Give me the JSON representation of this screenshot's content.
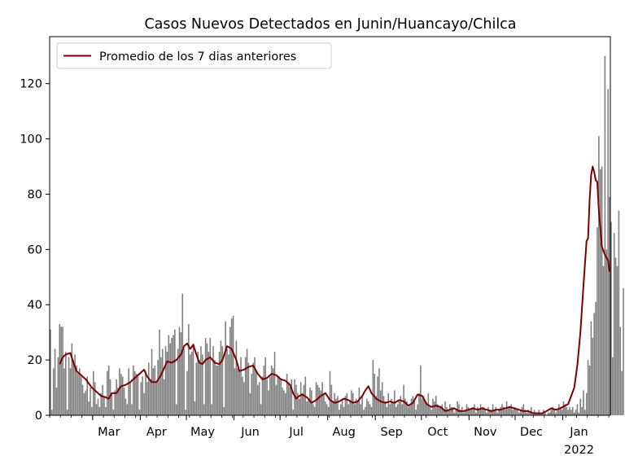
{
  "chart_data": {
    "type": "bar",
    "title": "Casos Nuevos Detectados en Junin/Huancayo/Chilca",
    "xlabel": "",
    "ylabel": "",
    "x_range": [
      "2021-02-01",
      "2022-01-31"
    ],
    "ylim": [
      0,
      137
    ],
    "y_ticks": [
      0,
      20,
      40,
      60,
      80,
      100,
      120
    ],
    "x_ticks": [
      {
        "date": "2021-03-01",
        "label": "Mar"
      },
      {
        "date": "2021-04-01",
        "label": "Apr"
      },
      {
        "date": "2021-05-01",
        "label": "May"
      },
      {
        "date": "2021-06-01",
        "label": "Jun"
      },
      {
        "date": "2021-07-01",
        "label": "Jul"
      },
      {
        "date": "2021-08-01",
        "label": "Aug"
      },
      {
        "date": "2021-09-01",
        "label": "Sep"
      },
      {
        "date": "2021-10-01",
        "label": "Oct"
      },
      {
        "date": "2021-11-01",
        "label": "Nov"
      },
      {
        "date": "2021-12-01",
        "label": "Dec"
      },
      {
        "date": "2022-01-01",
        "label": "Jan",
        "sublabel": "2022"
      }
    ],
    "grid": false,
    "legend_position": "top-left",
    "legend_entries": [
      "Promedio de los 7 dias anteriores"
    ],
    "bar_color": "#808080",
    "line_color": "#7f0000",
    "daily_cases": {
      "start_date": "2021-02-01",
      "values": [
        31,
        2,
        17,
        24,
        10,
        21,
        33,
        32,
        32,
        17,
        23,
        2,
        21,
        17,
        26,
        20,
        22,
        18,
        15,
        17,
        14,
        11,
        8,
        9,
        14,
        5,
        10,
        3,
        16,
        12,
        4,
        6,
        3,
        8,
        11,
        7,
        3,
        16,
        18,
        13,
        8,
        2,
        9,
        13,
        10,
        17,
        15,
        14,
        10,
        6,
        4,
        17,
        12,
        4,
        18,
        16,
        15,
        14,
        2,
        12,
        14,
        8,
        16,
        12,
        19,
        13,
        24,
        17,
        18,
        12,
        20,
        31,
        21,
        24,
        13,
        25,
        23,
        29,
        26,
        28,
        29,
        31,
        4,
        24,
        32,
        30,
        44,
        24,
        2,
        16,
        33,
        22,
        23,
        26,
        5,
        19,
        23,
        20,
        25,
        22,
        4,
        28,
        26,
        23,
        28,
        4,
        25,
        20,
        18,
        18,
        23,
        27,
        25,
        3,
        34,
        24,
        22,
        32,
        35,
        36,
        17,
        27,
        17,
        16,
        21,
        14,
        12,
        21,
        24,
        19,
        8,
        15,
        19,
        21,
        16,
        11,
        12,
        4,
        14,
        18,
        21,
        13,
        9,
        14,
        18,
        17,
        23,
        11,
        14,
        14,
        13,
        10,
        9,
        8,
        15,
        12,
        10,
        13,
        2,
        13,
        11,
        8,
        6,
        12,
        8,
        11,
        14,
        5,
        6,
        10,
        9,
        4,
        3,
        12,
        11,
        10,
        9,
        12,
        8,
        5,
        4,
        3,
        16,
        11,
        5,
        8,
        6,
        7,
        2,
        4,
        6,
        3,
        7,
        8,
        4,
        5,
        9,
        8,
        4,
        6,
        5,
        10,
        4,
        7,
        2,
        3,
        6,
        5,
        4,
        3,
        20,
        15,
        7,
        14,
        17,
        9,
        12,
        7,
        5,
        3,
        8,
        4,
        6,
        5,
        9,
        3,
        4,
        5,
        7,
        4,
        11,
        6,
        5,
        3,
        4,
        6,
        7,
        5,
        2,
        4,
        8,
        18,
        6,
        7,
        5,
        4,
        8,
        3,
        2,
        6,
        5,
        7,
        4,
        3,
        3,
        4,
        2,
        5,
        3,
        2,
        4,
        3,
        3,
        1,
        2,
        5,
        4,
        2,
        3,
        1,
        2,
        4,
        3,
        2,
        2,
        3,
        4,
        1,
        3,
        2,
        4,
        3,
        3,
        2,
        1,
        3,
        2,
        2,
        4,
        2,
        3,
        1,
        2,
        3,
        4,
        3,
        2,
        5,
        3,
        3,
        4,
        2,
        3,
        2,
        2,
        1,
        2,
        3,
        4,
        2,
        1,
        2,
        1,
        3,
        1,
        2,
        1,
        1,
        2,
        1,
        1,
        2,
        1,
        0,
        1,
        1,
        2,
        3,
        2,
        1,
        2,
        4,
        3,
        2,
        5,
        4,
        3,
        2,
        3,
        2,
        3,
        1,
        2,
        4,
        1,
        6,
        3,
        9,
        2,
        8,
        20,
        18,
        34,
        28,
        37,
        41,
        68,
        101,
        89,
        90,
        54,
        130,
        60,
        118,
        79,
        70,
        21,
        66,
        57,
        54,
        74,
        32,
        16,
        46
      ]
    },
    "rolling_average_7day": {
      "name": "Promedio de los 7 dias anteriores",
      "points": [
        [
          "2021-02-07",
          18.5
        ],
        [
          "2021-02-09",
          21
        ],
        [
          "2021-02-11",
          22
        ],
        [
          "2021-02-14",
          22.5
        ],
        [
          "2021-02-16",
          19
        ],
        [
          "2021-02-18",
          16
        ],
        [
          "2021-02-21",
          14.5
        ],
        [
          "2021-02-24",
          13
        ],
        [
          "2021-02-26",
          11.5
        ],
        [
          "2021-02-28",
          10
        ],
        [
          "2021-03-03",
          8.5
        ],
        [
          "2021-03-06",
          7
        ],
        [
          "2021-03-09",
          6.5
        ],
        [
          "2021-03-11",
          6
        ],
        [
          "2021-03-13",
          8
        ],
        [
          "2021-03-16",
          8
        ],
        [
          "2021-03-19",
          10.5
        ],
        [
          "2021-03-22",
          11
        ],
        [
          "2021-03-25",
          12
        ],
        [
          "2021-03-28",
          13.5
        ],
        [
          "2021-03-31",
          15
        ],
        [
          "2021-04-03",
          16.5
        ],
        [
          "2021-04-05",
          14
        ],
        [
          "2021-04-08",
          12
        ],
        [
          "2021-04-11",
          12
        ],
        [
          "2021-04-14",
          14.5
        ],
        [
          "2021-04-16",
          17
        ],
        [
          "2021-04-18",
          19.5
        ],
        [
          "2021-04-21",
          19
        ],
        [
          "2021-04-24",
          20
        ],
        [
          "2021-04-27",
          22
        ],
        [
          "2021-04-29",
          25
        ],
        [
          "2021-05-01",
          26
        ],
        [
          "2021-05-03",
          24
        ],
        [
          "2021-05-05",
          25.5
        ],
        [
          "2021-05-07",
          22
        ],
        [
          "2021-05-09",
          19
        ],
        [
          "2021-05-11",
          18.5
        ],
        [
          "2021-05-13",
          20
        ],
        [
          "2021-05-16",
          21
        ],
        [
          "2021-05-19",
          19
        ],
        [
          "2021-05-22",
          18.5
        ],
        [
          "2021-05-24",
          20
        ],
        [
          "2021-05-27",
          25
        ],
        [
          "2021-05-30",
          24
        ],
        [
          "2021-06-02",
          20
        ],
        [
          "2021-06-04",
          16
        ],
        [
          "2021-06-07",
          16.5
        ],
        [
          "2021-06-10",
          17.5
        ],
        [
          "2021-06-13",
          18
        ],
        [
          "2021-06-16",
          15
        ],
        [
          "2021-06-19",
          13
        ],
        [
          "2021-06-22",
          13.5
        ],
        [
          "2021-06-25",
          15
        ],
        [
          "2021-06-28",
          14.5
        ],
        [
          "2021-07-01",
          13
        ],
        [
          "2021-07-04",
          12.5
        ],
        [
          "2021-07-07",
          11
        ],
        [
          "2021-07-09",
          8
        ],
        [
          "2021-07-11",
          6
        ],
        [
          "2021-07-13",
          7
        ],
        [
          "2021-07-15",
          7.5
        ],
        [
          "2021-07-18",
          6.5
        ],
        [
          "2021-07-21",
          4.5
        ],
        [
          "2021-07-24",
          5.5
        ],
        [
          "2021-07-27",
          7
        ],
        [
          "2021-07-30",
          8
        ],
        [
          "2021-08-02",
          5.5
        ],
        [
          "2021-08-05",
          4.5
        ],
        [
          "2021-08-08",
          5
        ],
        [
          "2021-08-11",
          6
        ],
        [
          "2021-08-14",
          5.5
        ],
        [
          "2021-08-17",
          4.5
        ],
        [
          "2021-08-20",
          5
        ],
        [
          "2021-08-23",
          7
        ],
        [
          "2021-08-25",
          9
        ],
        [
          "2021-08-27",
          10.5
        ],
        [
          "2021-08-29",
          8
        ],
        [
          "2021-09-01",
          6
        ],
        [
          "2021-09-04",
          5
        ],
        [
          "2021-09-07",
          4.5
        ],
        [
          "2021-09-10",
          5
        ],
        [
          "2021-09-13",
          4.5
        ],
        [
          "2021-09-16",
          5.5
        ],
        [
          "2021-09-19",
          5
        ],
        [
          "2021-09-22",
          3.5
        ],
        [
          "2021-09-25",
          4.5
        ],
        [
          "2021-09-28",
          7.5
        ],
        [
          "2021-10-01",
          7
        ],
        [
          "2021-10-04",
          4
        ],
        [
          "2021-10-07",
          3
        ],
        [
          "2021-10-10",
          3.5
        ],
        [
          "2021-10-13",
          3
        ],
        [
          "2021-10-16",
          1.5
        ],
        [
          "2021-10-19",
          2
        ],
        [
          "2021-10-22",
          2.5
        ],
        [
          "2021-10-25",
          1.5
        ],
        [
          "2021-10-28",
          1.5
        ],
        [
          "2021-10-31",
          2
        ],
        [
          "2021-11-03",
          2.5
        ],
        [
          "2021-11-06",
          2
        ],
        [
          "2021-11-09",
          2.5
        ],
        [
          "2021-11-12",
          2
        ],
        [
          "2021-11-15",
          1.5
        ],
        [
          "2021-11-18",
          2
        ],
        [
          "2021-11-21",
          2
        ],
        [
          "2021-11-24",
          2.5
        ],
        [
          "2021-11-27",
          3
        ],
        [
          "2021-11-30",
          2.5
        ],
        [
          "2021-12-03",
          2
        ],
        [
          "2021-12-06",
          1.5
        ],
        [
          "2021-12-09",
          1.5
        ],
        [
          "2021-12-12",
          0.8
        ],
        [
          "2021-12-15",
          0.7
        ],
        [
          "2021-12-18",
          0.7
        ],
        [
          "2021-12-21",
          1.5
        ],
        [
          "2021-12-24",
          2.5
        ],
        [
          "2021-12-27",
          2
        ],
        [
          "2021-12-30",
          2.5
        ],
        [
          "2022-01-02",
          3.5
        ],
        [
          "2022-01-04",
          4
        ],
        [
          "2022-01-06",
          7
        ],
        [
          "2022-01-08",
          10
        ],
        [
          "2022-01-10",
          18
        ],
        [
          "2022-01-12",
          30
        ],
        [
          "2022-01-14",
          47
        ],
        [
          "2022-01-16",
          63
        ],
        [
          "2022-01-17",
          64
        ],
        [
          "2022-01-18",
          78
        ],
        [
          "2022-01-19",
          87
        ],
        [
          "2022-01-20",
          90
        ],
        [
          "2022-01-21",
          88
        ],
        [
          "2022-01-22",
          85
        ],
        [
          "2022-01-23",
          84.5
        ],
        [
          "2022-01-24",
          74
        ],
        [
          "2022-01-25",
          68
        ],
        [
          "2022-01-26",
          61
        ],
        [
          "2022-01-28",
          58
        ],
        [
          "2022-01-30",
          56
        ],
        [
          "2022-01-31",
          52
        ]
      ]
    }
  }
}
